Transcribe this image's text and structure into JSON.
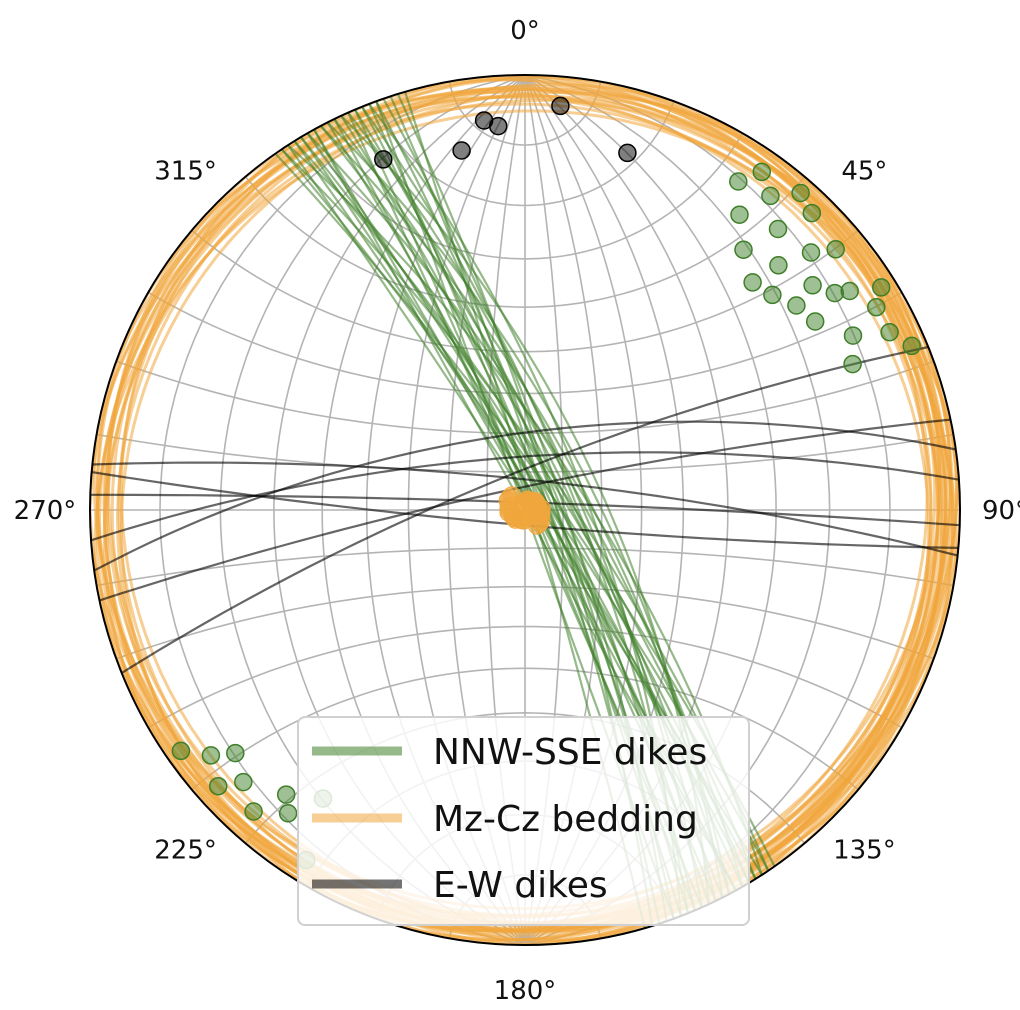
{
  "chart_data": {
    "type": "stereonet",
    "projection": "equal-angle lower hemisphere",
    "grid": true,
    "azimuth_ticks": [
      "0°",
      "45°",
      "90°",
      "135°",
      "180°",
      "225°",
      "270°",
      "315°"
    ],
    "legend": {
      "placement": "lower-center",
      "entries": [
        "NNW-SSE dikes",
        "Mz-Cz bedding",
        "E-W dikes"
      ]
    },
    "series": [
      {
        "name": "NNW-SSE dikes",
        "color": "#3f7f2a",
        "planes": [
          [
            328,
            86
          ],
          [
            330,
            84
          ],
          [
            331,
            88
          ],
          [
            333,
            85
          ],
          [
            334,
            87
          ],
          [
            335,
            83
          ],
          [
            336,
            89
          ],
          [
            328,
            80
          ],
          [
            329,
            82
          ],
          [
            332,
            79
          ],
          [
            337,
            81
          ],
          [
            338,
            84
          ],
          [
            339,
            86
          ],
          [
            340,
            82
          ],
          [
            327,
            88
          ],
          [
            326,
            84
          ],
          [
            330,
            76
          ],
          [
            332,
            74
          ],
          [
            334,
            78
          ],
          [
            325,
            82
          ],
          [
            336,
            76
          ],
          [
            341,
            80
          ],
          [
            331,
            90
          ],
          [
            333,
            72
          ],
          [
            335,
            70
          ],
          [
            338,
            77
          ],
          [
            342,
            84
          ],
          [
            326,
            79
          ],
          [
            329,
            86
          ],
          [
            337,
            88
          ],
          [
            339,
            74
          ],
          [
            343,
            82
          ],
          [
            344,
            88
          ],
          [
            327,
            75
          ],
          [
            340,
            90
          ]
        ],
        "poles": [
          [
            58,
            2
          ],
          [
            60,
            4
          ],
          [
            56,
            6
          ],
          [
            55,
            8
          ],
          [
            52,
            10
          ],
          [
            50,
            4
          ],
          [
            48,
            7
          ],
          [
            46,
            12
          ],
          [
            44,
            3
          ],
          [
            42,
            8
          ],
          [
            40,
            14
          ],
          [
            38,
            5
          ],
          [
            36,
            10
          ],
          [
            62,
            9
          ],
          [
            64,
            4
          ],
          [
            66,
            11
          ],
          [
            53,
            14
          ],
          [
            57,
            13
          ],
          [
            49,
            16
          ],
          [
            45,
            17
          ],
          [
            41,
            2
          ],
          [
            35,
            3
          ],
          [
            33,
            6
          ],
          [
            67,
            2
          ],
          [
            235,
            2
          ],
          [
            232,
            5
          ],
          [
            230,
            8
          ],
          [
            228,
            3
          ],
          [
            226,
            6
          ],
          [
            222,
            4
          ],
          [
            220,
            9
          ],
          [
            218,
            7
          ],
          [
            215,
            12
          ],
          [
            212,
            3
          ]
        ]
      },
      {
        "name": "Mz-Cz bedding",
        "color": "#f0a63c",
        "bedding": [
          [
            0,
            3
          ],
          [
            5,
            2
          ],
          [
            10,
            4
          ],
          [
            15,
            3
          ],
          [
            20,
            2
          ],
          [
            25,
            5
          ],
          [
            30,
            4
          ],
          [
            35,
            3
          ],
          [
            40,
            2
          ],
          [
            45,
            4
          ],
          [
            50,
            3
          ],
          [
            55,
            5
          ],
          [
            60,
            2
          ],
          [
            65,
            3
          ],
          [
            70,
            4
          ],
          [
            75,
            2
          ],
          [
            80,
            3
          ],
          [
            85,
            5
          ],
          [
            90,
            2
          ],
          [
            100,
            4
          ],
          [
            110,
            3
          ],
          [
            120,
            2
          ],
          [
            130,
            4
          ],
          [
            140,
            3
          ],
          [
            150,
            5
          ],
          [
            160,
            2
          ],
          [
            170,
            4
          ],
          [
            180,
            3
          ],
          [
            190,
            2
          ],
          [
            200,
            4
          ],
          [
            210,
            5
          ],
          [
            220,
            3
          ],
          [
            230,
            2
          ],
          [
            240,
            4
          ],
          [
            250,
            3
          ],
          [
            260,
            5
          ],
          [
            270,
            2
          ],
          [
            280,
            4
          ],
          [
            290,
            3
          ],
          [
            300,
            2
          ],
          [
            310,
            4
          ],
          [
            320,
            3
          ],
          [
            330,
            5
          ],
          [
            340,
            2
          ],
          [
            350,
            4
          ],
          [
            355,
            3
          ]
        ],
        "poles_cluster": {
          "trend": 150,
          "plunge": 88
        }
      },
      {
        "name": "E-W dikes",
        "color": "#000000",
        "planes": [
          [
            248,
            80
          ],
          [
            258,
            84
          ],
          [
            262,
            70
          ],
          [
            266,
            76
          ],
          [
            272,
            88
          ],
          [
            276,
            82
          ],
          [
            95,
            86
          ]
        ],
        "poles": [
          [
            338,
            8
          ],
          [
            350,
            10
          ],
          [
            354,
            6
          ],
          [
            356,
            7
          ],
          [
            5,
            4
          ],
          [
            16,
            9
          ]
        ]
      }
    ]
  }
}
